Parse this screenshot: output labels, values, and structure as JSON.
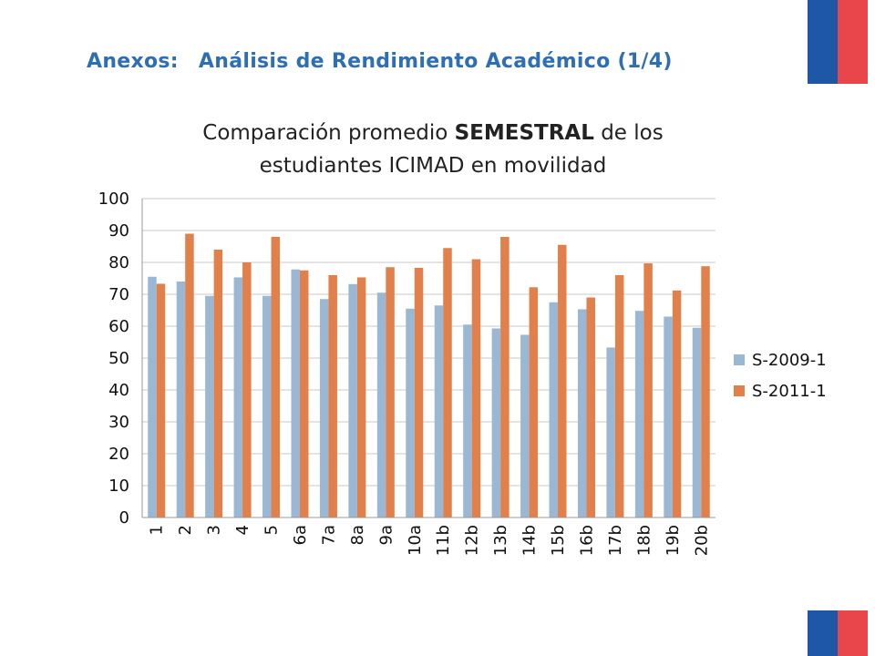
{
  "header": {
    "prefix": "Anexos:",
    "title": "Análisis de Rendimiento Académico (1/4)"
  },
  "subtitle": {
    "line1_pre": "Comparación promedio ",
    "line1_bold": "SEMESTRAL",
    "line1_post": " de los",
    "line2": "estudiantes ICIMAD en movilidad"
  },
  "colors": {
    "header_blue": "#2e6fb4",
    "flag_blue": "#1f57a7",
    "flag_red": "#e8464a",
    "series_2009": "#9ab7d3",
    "series_2011": "#e1804a"
  },
  "chart_data": {
    "type": "bar",
    "categories": [
      "1",
      "2",
      "3",
      "4",
      "5",
      "6a",
      "7a",
      "8a",
      "9a",
      "10a",
      "11b",
      "12b",
      "13b",
      "14b",
      "15b",
      "16b",
      "17b",
      "18b",
      "19b",
      "20b"
    ],
    "series": [
      {
        "name": "S-2009-1",
        "values": [
          75.5,
          74,
          69.5,
          75.3,
          69.5,
          77.8,
          68.5,
          73.2,
          70.5,
          65.5,
          66.5,
          60.5,
          59.3,
          57.3,
          67.5,
          65.3,
          53.3,
          64.8,
          63,
          59.5
        ]
      },
      {
        "name": "S-2011-1",
        "values": [
          73.3,
          89,
          84,
          80,
          88,
          77.5,
          76,
          75.3,
          78.5,
          78.3,
          84.5,
          81,
          88,
          72.2,
          85.5,
          69,
          76,
          79.7,
          71.2,
          78.8
        ]
      }
    ],
    "ylim": [
      0,
      100
    ],
    "yticks": [
      "0",
      "10",
      "20",
      "30",
      "40",
      "50",
      "60",
      "70",
      "80",
      "90",
      "100"
    ],
    "grid": true,
    "legend": "right"
  }
}
